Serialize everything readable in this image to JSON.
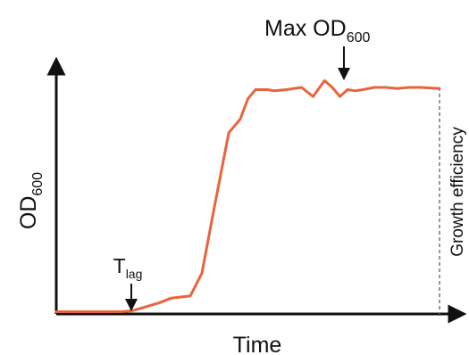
{
  "chart_data": {
    "type": "line",
    "title": "",
    "xlabel": "Time",
    "ylabel": {
      "main": "OD",
      "sub": "600"
    },
    "xlim": [
      0,
      100
    ],
    "ylim": [
      0,
      100
    ],
    "grid": false,
    "legend": "none",
    "series": [
      {
        "color": "#e8643c",
        "x": [
          0,
          5,
          12,
          17,
          20,
          23,
          27,
          30,
          35,
          38,
          41,
          45,
          48,
          50,
          52,
          55,
          57,
          60,
          64,
          67,
          70,
          72,
          74,
          76,
          78,
          80,
          83,
          86,
          89,
          92,
          95,
          100
        ],
        "y": [
          1,
          1,
          1,
          1,
          1.5,
          3,
          5,
          7,
          8,
          18,
          45,
          80,
          86,
          95,
          99,
          99,
          98.5,
          99,
          100,
          96,
          103,
          100,
          96,
          99,
          98.5,
          99,
          100,
          100,
          99.5,
          100,
          100,
          99.5
        ]
      }
    ],
    "annotations": {
      "t_lag": {
        "main": "T",
        "sub": "lag",
        "x": 18.5
      },
      "max_od": {
        "main": "Max OD",
        "sub": "600",
        "x": 76
      },
      "growth_efficiency": {
        "text": "Growth efficiency",
        "x": 100
      }
    }
  }
}
